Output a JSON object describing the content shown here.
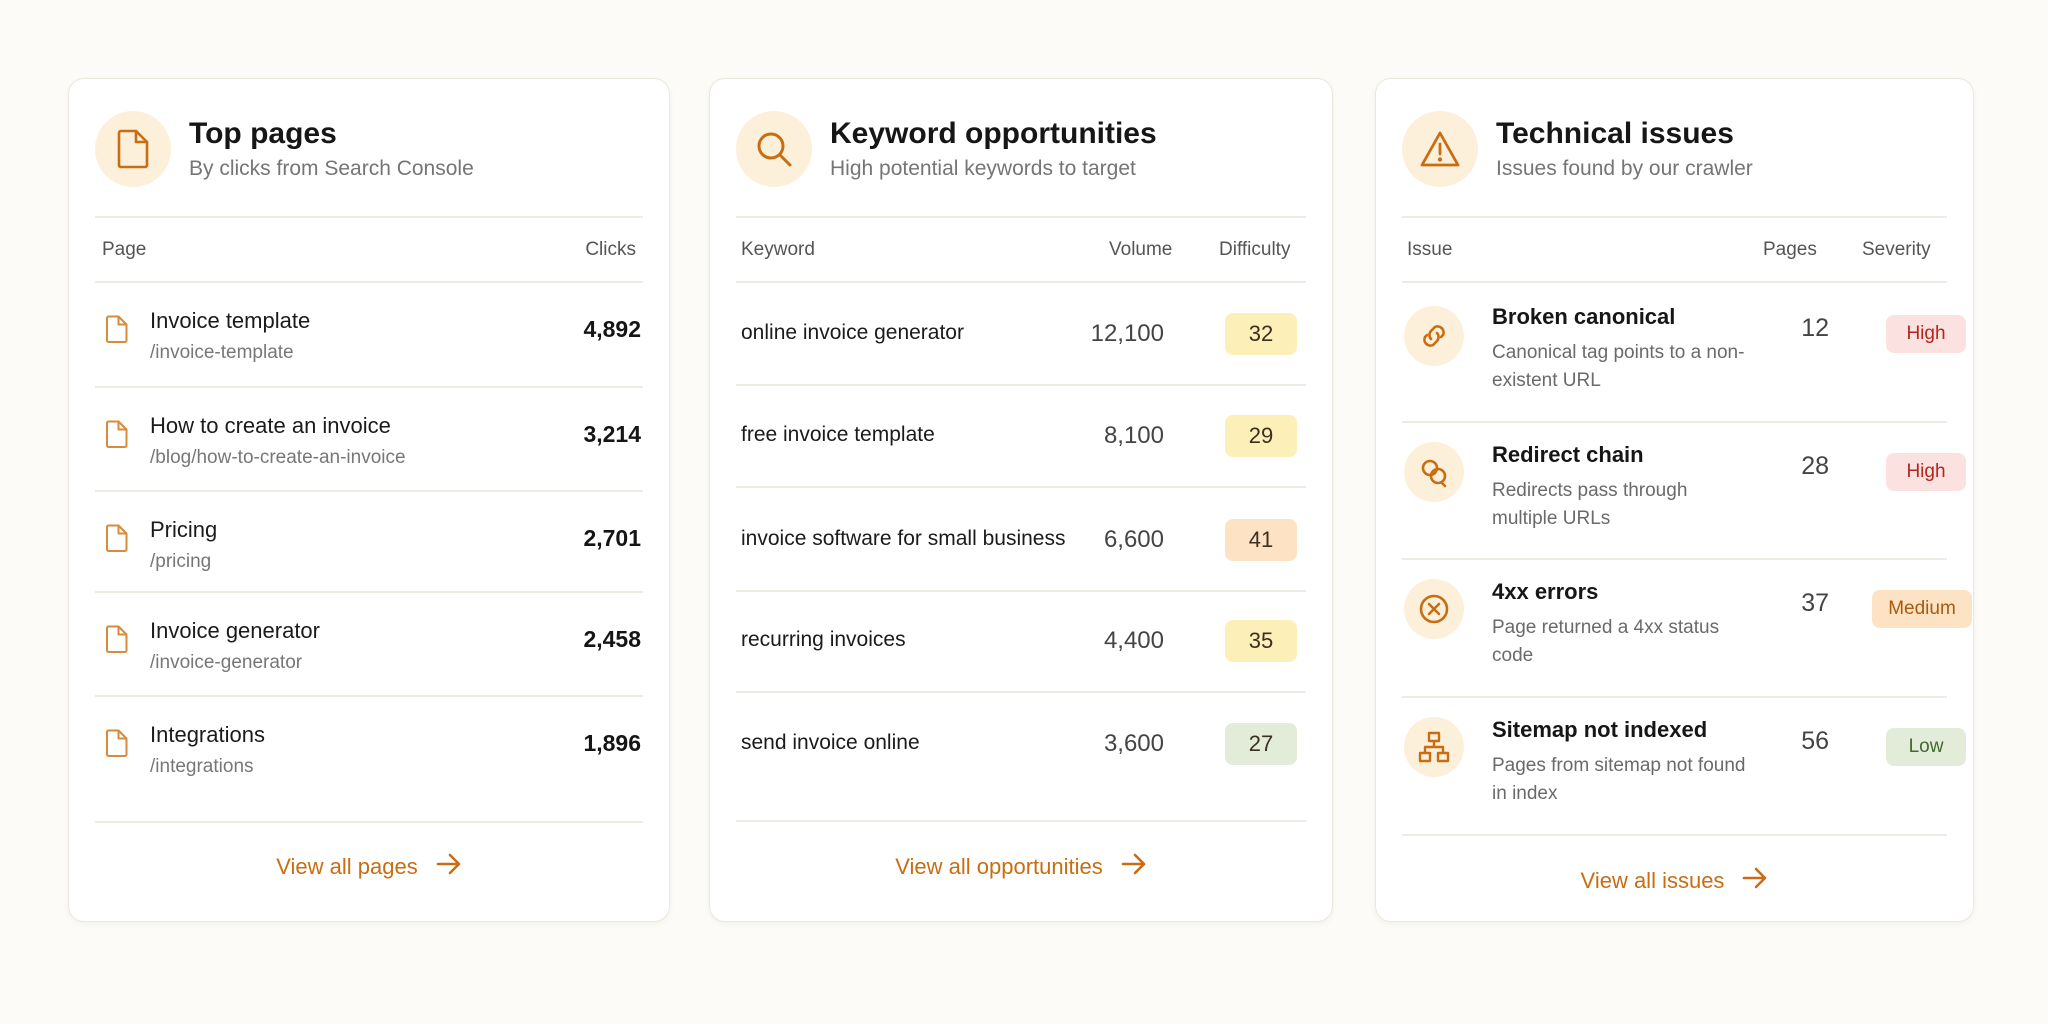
{
  "colors": {
    "accent": "#c96d12",
    "icon_bg": "#fdf0da"
  },
  "top_pages": {
    "title": "Top pages",
    "subtitle": "By clicks from Search Console",
    "header_icon": "document-icon",
    "columns": {
      "page": "Page",
      "clicks": "Clicks"
    },
    "rows": [
      {
        "title": "Invoice template",
        "path": "/invoice-template",
        "clicks": "4,892"
      },
      {
        "title": "How to create an invoice",
        "path": "/blog/how-to-create-an-invoice",
        "clicks": "3,214"
      },
      {
        "title": "Pricing",
        "path": "/pricing",
        "clicks": "2,701"
      },
      {
        "title": "Invoice generator",
        "path": "/invoice-generator",
        "clicks": "2,458"
      },
      {
        "title": "Integrations",
        "path": "/integrations",
        "clicks": "1,896"
      }
    ],
    "view_all": "View all pages"
  },
  "keywords": {
    "title": "Keyword opportunities",
    "subtitle": "High potential keywords to target",
    "header_icon": "search-icon",
    "columns": {
      "keyword": "Keyword",
      "volume": "Volume",
      "difficulty": "Difficulty"
    },
    "rows": [
      {
        "keyword": "online invoice generator",
        "volume": "12,100",
        "difficulty": "32",
        "color": "#fdefb8"
      },
      {
        "keyword": "free invoice template",
        "volume": "8,100",
        "difficulty": "29",
        "color": "#fdefb8"
      },
      {
        "keyword": "invoice software for small business",
        "volume": "6,600",
        "difficulty": "41",
        "color": "#fde3c3"
      },
      {
        "keyword": "recurring invoices",
        "volume": "4,400",
        "difficulty": "35",
        "color": "#fdefb8"
      },
      {
        "keyword": "send invoice online",
        "volume": "3,600",
        "difficulty": "27",
        "color": "#e3ecd9"
      }
    ],
    "view_all": "View all opportunities"
  },
  "issues": {
    "title": "Technical issues",
    "subtitle": "Issues found by our crawler",
    "header_icon": "warning-icon",
    "columns": {
      "issue": "Issue",
      "pages": "Pages",
      "severity": "Severity"
    },
    "rows": [
      {
        "icon": "link-icon",
        "title": "Broken canonical",
        "desc": "Canonical tag points to a non-existent URL",
        "pages": "12",
        "severity": "High",
        "sev_bg": "#fbe2e0",
        "sev_fg": "#b3261e"
      },
      {
        "icon": "redirect-icon",
        "title": "Redirect chain",
        "desc": "Redirects pass through multiple URLs",
        "pages": "28",
        "severity": "High",
        "sev_bg": "#fbe2e0",
        "sev_fg": "#b3261e"
      },
      {
        "icon": "x-circle-icon",
        "title": "4xx errors",
        "desc": "Page returned a 4xx status code",
        "pages": "37",
        "severity": "Medium",
        "sev_bg": "#fde3c3",
        "sev_fg": "#a85a10"
      },
      {
        "icon": "sitemap-icon",
        "title": "Sitemap not indexed",
        "desc": "Pages from sitemap not found in index",
        "pages": "56",
        "severity": "Low",
        "sev_bg": "#e3ecd9",
        "sev_fg": "#3f6a2a"
      }
    ],
    "view_all": "View all issues"
  }
}
